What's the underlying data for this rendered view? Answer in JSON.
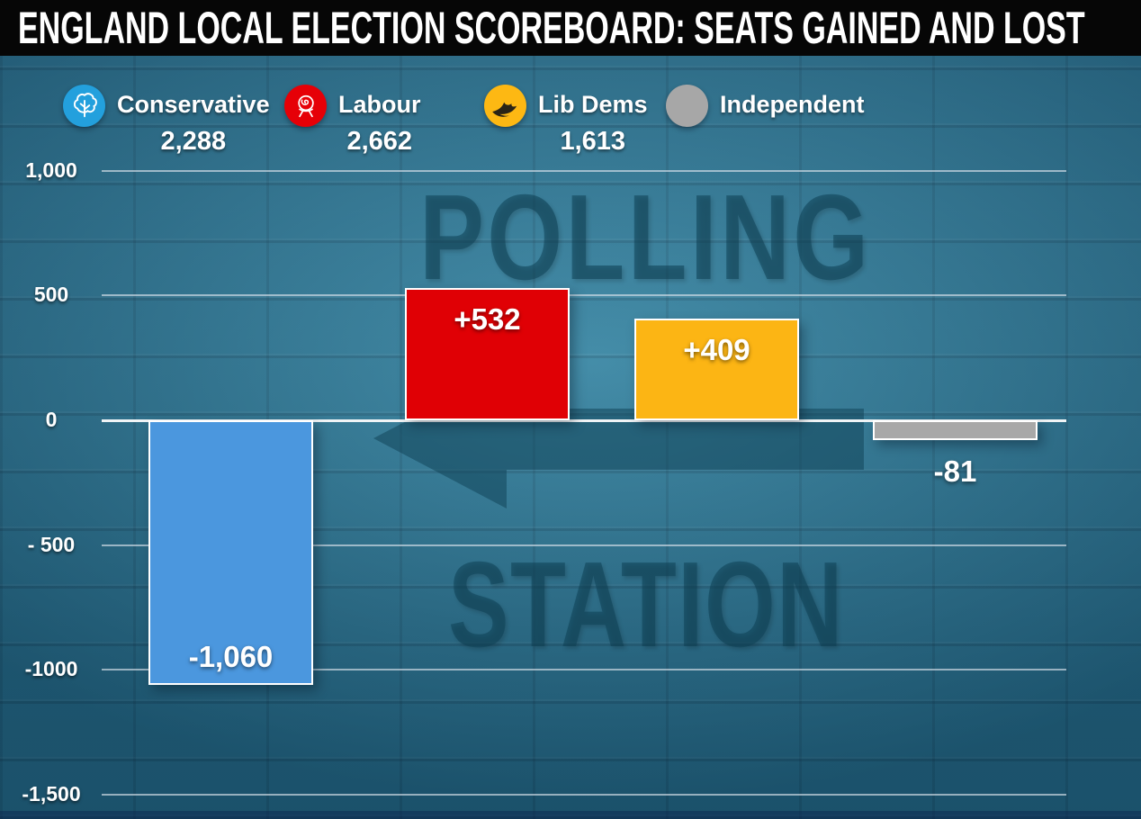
{
  "header": {
    "title": "ENGLAND LOCAL ELECTION SCOREBOARD: SEATS GAINED AND LOST",
    "background_color": "#060606",
    "text_color": "#ffffff"
  },
  "legend": {
    "items": [
      {
        "party": "Conservative",
        "total": "2,288",
        "color": "#23a0dd",
        "icon": "conservative-tree-icon"
      },
      {
        "party": "Labour",
        "total": "2,662",
        "color": "#e60007",
        "icon": "labour-rose-icon"
      },
      {
        "party": "Lib Dems",
        "total": "1,613",
        "color": "#fdb813",
        "icon": "libdems-bird-icon"
      },
      {
        "party": "Independent",
        "color": "#a7a7a7",
        "icon": "independent-circle-icon"
      }
    ]
  },
  "watermark": {
    "line1": "POLLING",
    "line2": "STATION",
    "arrow_direction": "left",
    "color": "#0d4054"
  },
  "chart_data": {
    "type": "bar",
    "title": "ENGLAND LOCAL ELECTION SCOREBOARD: SEATS GAINED AND LOST",
    "categories": [
      "Conservative",
      "Labour",
      "Lib Dems",
      "Independent"
    ],
    "values": [
      -1060,
      532,
      409,
      -81
    ],
    "bar_labels": [
      "-1,060",
      "+532",
      "+409",
      "-81"
    ],
    "bar_colors": [
      "#4b97de",
      "#e00005",
      "#fcb514",
      "#a8a8a8"
    ],
    "party_totals": [
      "2,288",
      "2,662",
      "1,613",
      ""
    ],
    "ylim": [
      -1500,
      1000
    ],
    "yticks": [
      1000,
      500,
      0,
      -500,
      -1000,
      -1500
    ],
    "ytick_labels": [
      "1,000",
      "500",
      "0",
      "- 500",
      "-1000",
      "-1,500"
    ],
    "grid": true,
    "legend_position": "top",
    "background": "teal brick wall with POLLING STATION watermark"
  }
}
